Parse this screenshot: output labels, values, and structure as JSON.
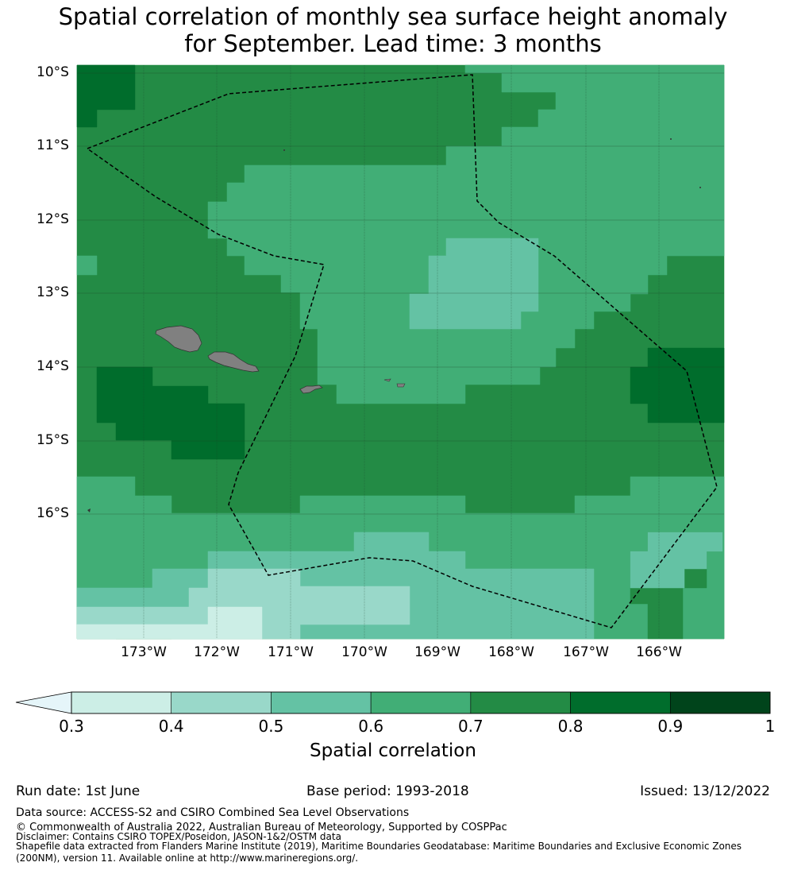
{
  "title_line1": "Spatial correlation of monthly sea surface height anomaly",
  "title_line2": "for September. Lead time: 3 months",
  "lat_labels": [
    "10°S",
    "11°S",
    "12°S",
    "13°S",
    "14°S",
    "15°S",
    "16°S"
  ],
  "lon_labels": [
    "173°W",
    "172°W",
    "171°W",
    "170°W",
    "169°W",
    "168°W",
    "167°W",
    "166°W"
  ],
  "colorbar": {
    "ticks": [
      "0.3",
      "0.4",
      "0.5",
      "0.6",
      "0.7",
      "0.8",
      "0.9",
      "1"
    ],
    "colors": [
      "#cceee6",
      "#99d8c9",
      "#64c2a4",
      "#41ae76",
      "#238b45",
      "#006d2c",
      "#00441b"
    ],
    "extend_color": "#e5f5f9",
    "label": "Spatial correlation"
  },
  "footer": {
    "run_date": "Run date: 1st June",
    "base_period": "Base period: 1993-2018",
    "issued": "Issued: 13/12/2022",
    "data_source": "Data source: ACCESS-S2 and CSIRO Combined Sea Level Observations",
    "copyright": "© Commonwealth of Australia 2022, Australian Bureau of Meteorology, Supported by COSPPac",
    "disclaimer": "Disclaimer: Contains CSIRO TOPEX/Poseidon, JASON-1&2/OSTM data",
    "shapefile": "Shapefile data extracted from Flanders Marine Institute (2019), Maritime Boundaries Geodatabase: Maritime Boundaries and Exclusive Economic Zones (200NM), version 11. Available online at http://www.marineregions.org/."
  },
  "map_colors": {
    "c03": "#cceee6",
    "c04": "#99d8c9",
    "c05": "#64c2a4",
    "c06": "#41ae76",
    "c07": "#238b45",
    "c08": "#006d2c",
    "land": "#808080"
  }
}
